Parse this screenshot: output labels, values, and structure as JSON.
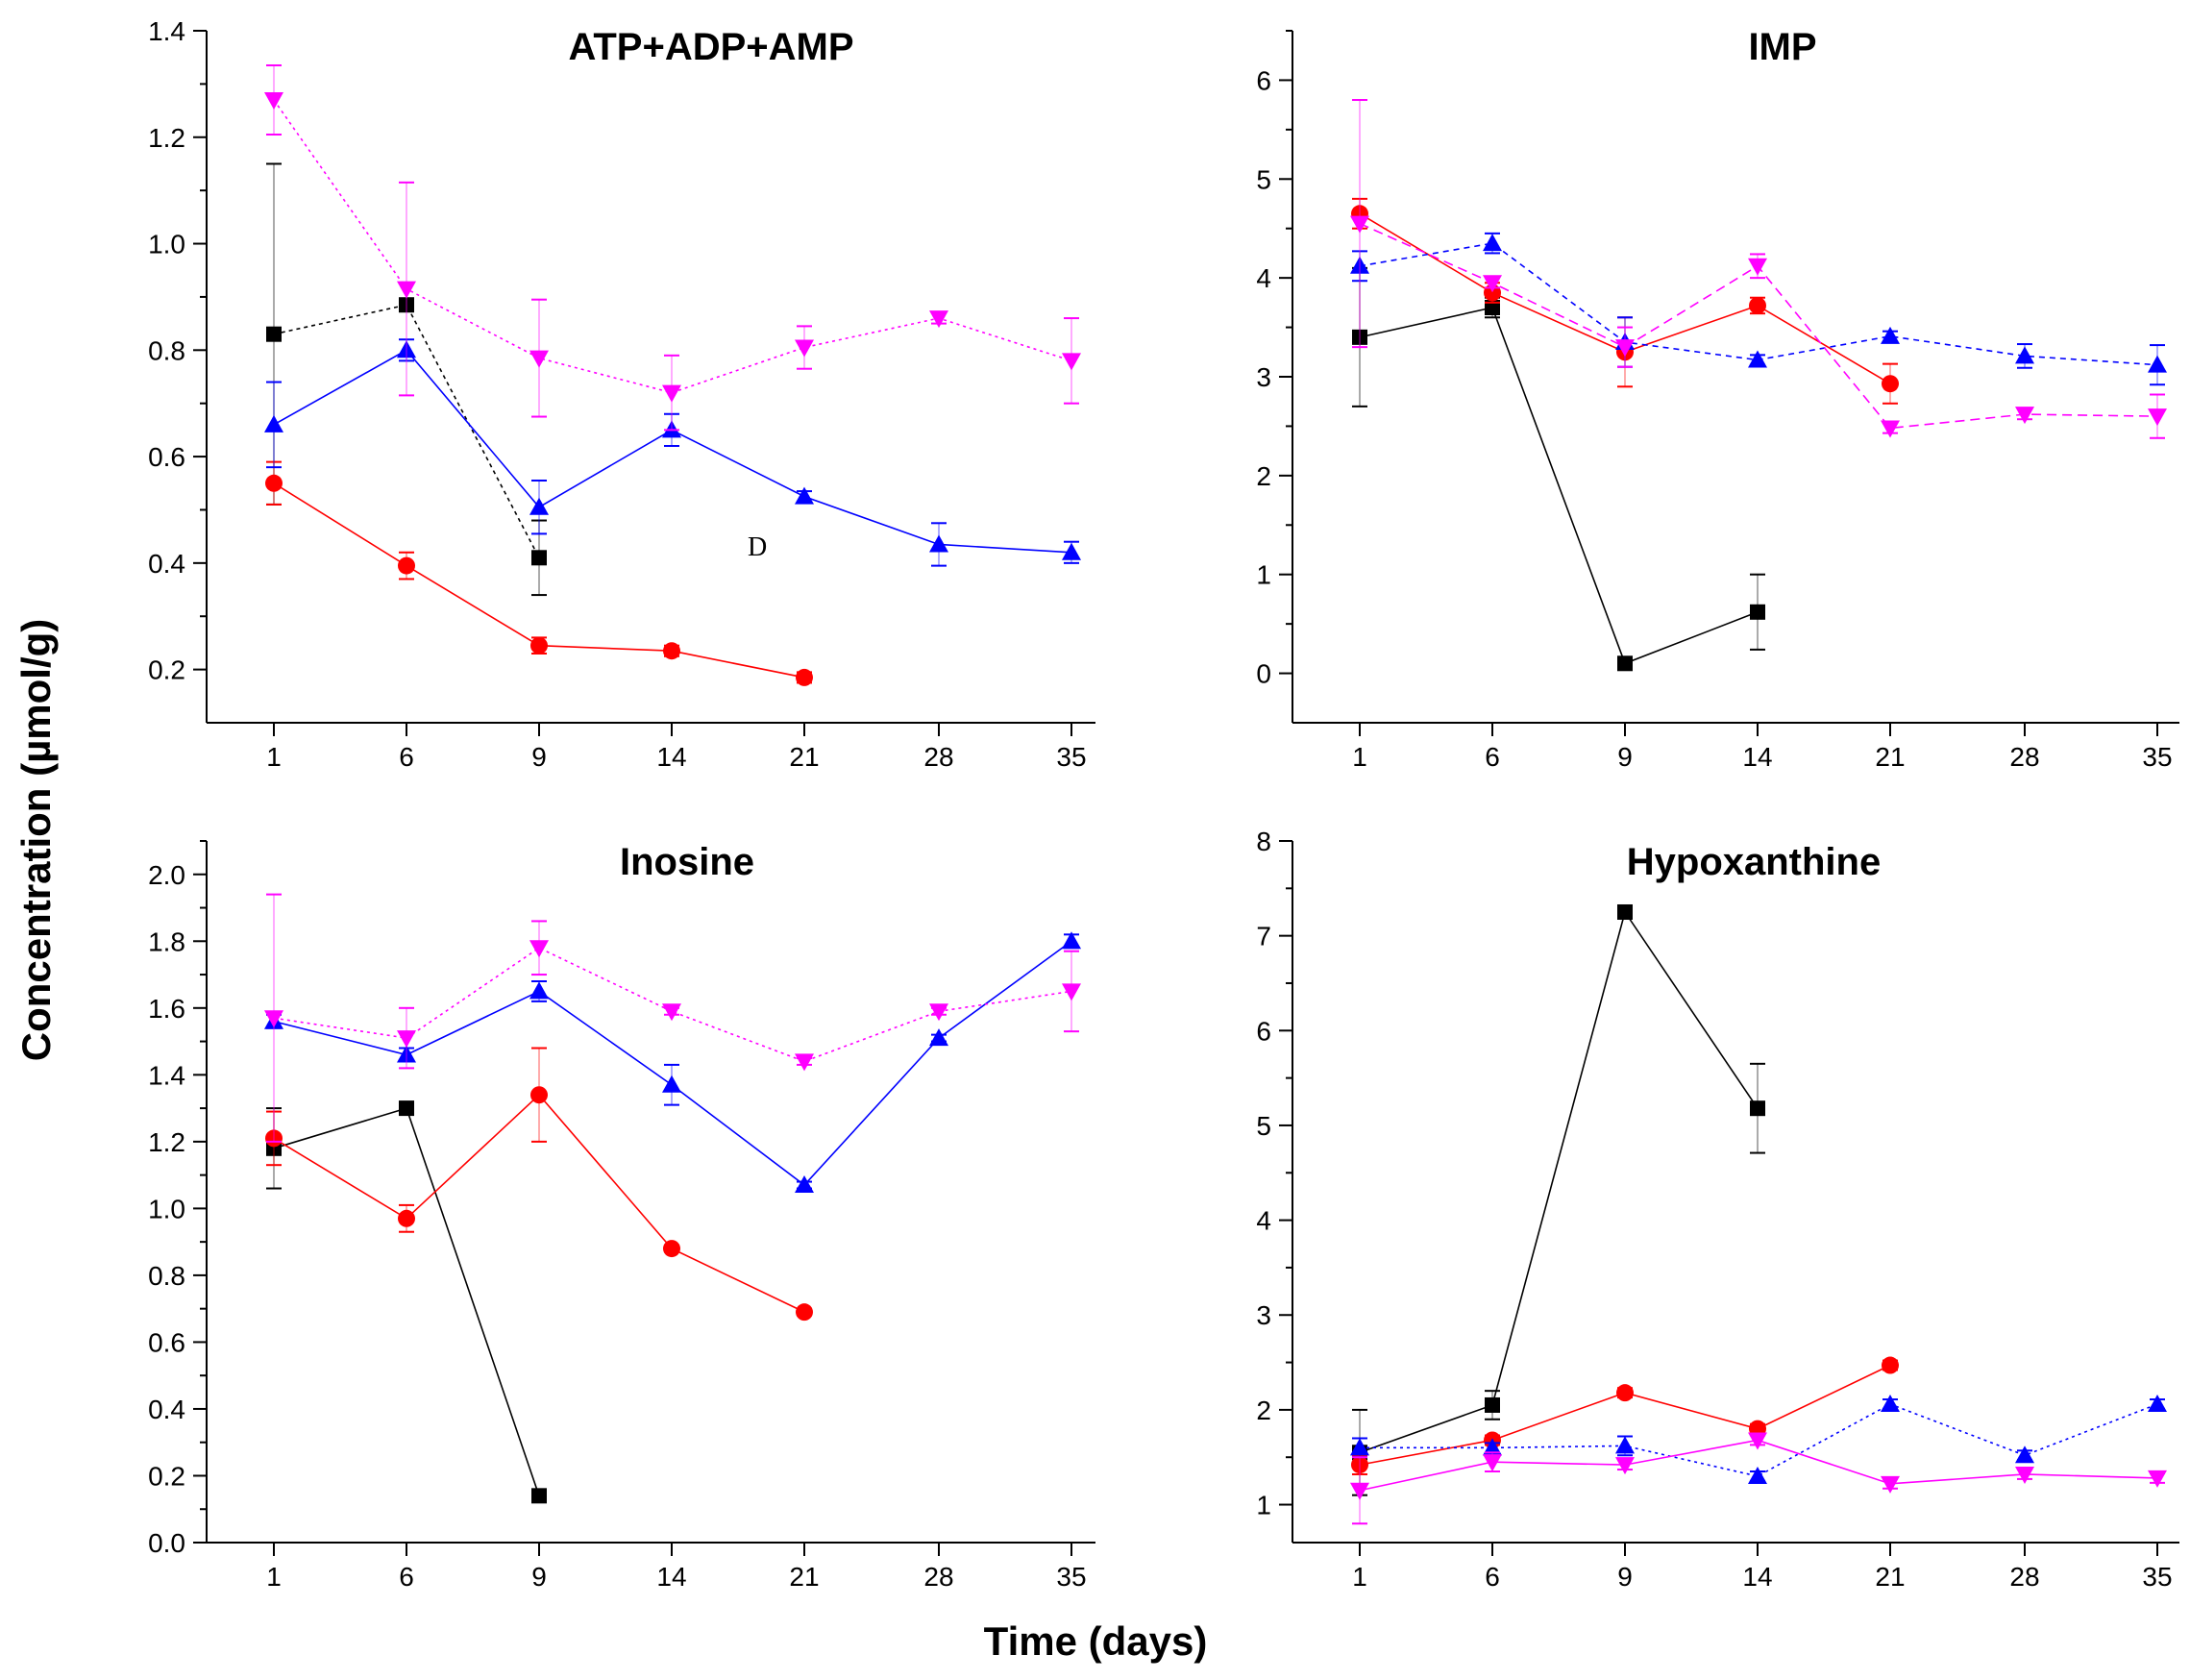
{
  "figure": {
    "xlabel": "Time (days)",
    "ylabel": "Concentration (µmol/g)",
    "stray_mark": "D"
  },
  "colors": {
    "black": "#000000",
    "red": "#ff0000",
    "blue": "#0000ff",
    "magenta": "#ff00ff",
    "error_gray": "#888888"
  },
  "chart_data": [
    {
      "type": "line",
      "title": "ATP+ADP+AMP",
      "categories": [
        "1",
        "6",
        "9",
        "14",
        "21",
        "28",
        "35"
      ],
      "ylim": [
        0.1,
        1.4
      ],
      "yticks": [
        "0.2",
        "0.4",
        "0.6",
        "0.8",
        "1.0",
        "1.2",
        "1.4"
      ],
      "series": [
        {
          "name": "black-square",
          "color": "#000000",
          "marker": "square",
          "dash": "4,4",
          "values": [
            0.83,
            0.885,
            0.41,
            null,
            null,
            null,
            null
          ],
          "errors": [
            0.32,
            0.0,
            0.07,
            null,
            null,
            null,
            null
          ]
        },
        {
          "name": "red-circle",
          "color": "#ff0000",
          "marker": "circle",
          "dash": "none",
          "values": [
            0.55,
            0.395,
            0.245,
            0.235,
            0.185,
            null,
            null
          ],
          "errors": [
            0.04,
            0.025,
            0.015,
            0.01,
            0.01,
            null,
            null
          ]
        },
        {
          "name": "blue-triangle-up",
          "color": "#0000ff",
          "marker": "triangle-up",
          "dash": "none",
          "values": [
            0.66,
            0.8,
            0.505,
            0.65,
            0.525,
            0.435,
            0.42
          ],
          "errors": [
            0.08,
            0.02,
            0.05,
            0.03,
            0.01,
            0.04,
            0.02
          ]
        },
        {
          "name": "magenta-triangle-down",
          "color": "#ff00ff",
          "marker": "triangle-down",
          "dash": "3,4",
          "values": [
            1.27,
            0.915,
            0.785,
            0.72,
            0.805,
            0.86,
            0.78
          ],
          "errors": [
            0.065,
            0.2,
            0.11,
            0.07,
            0.04,
            0.01,
            0.08
          ]
        }
      ]
    },
    {
      "type": "line",
      "title": "IMP",
      "categories": [
        "1",
        "6",
        "9",
        "14",
        "21",
        "28",
        "35"
      ],
      "ylim": [
        -0.5,
        6.5
      ],
      "yticks": [
        "0",
        "1",
        "2",
        "3",
        "4",
        "5",
        "6"
      ],
      "series": [
        {
          "name": "black-square",
          "color": "#000000",
          "marker": "square",
          "dash": "none",
          "values": [
            3.4,
            3.7,
            0.1,
            0.62,
            null,
            null,
            null
          ],
          "errors": [
            0.7,
            0.1,
            0.05,
            0.38,
            null,
            null,
            null
          ]
        },
        {
          "name": "red-circle",
          "color": "#ff0000",
          "marker": "circle",
          "dash": "none",
          "values": [
            4.65,
            3.85,
            3.25,
            3.72,
            2.93,
            null,
            null
          ],
          "errors": [
            0.15,
            0.1,
            0.35,
            0.08,
            0.2,
            null,
            null
          ]
        },
        {
          "name": "blue-triangle-up",
          "color": "#0000ff",
          "marker": "triangle-up",
          "dash": "6,5",
          "values": [
            4.12,
            4.35,
            3.35,
            3.17,
            3.41,
            3.21,
            3.12
          ],
          "errors": [
            0.15,
            0.1,
            0.25,
            0.05,
            0.05,
            0.12,
            0.2
          ]
        },
        {
          "name": "magenta-triangle-down",
          "color": "#ff00ff",
          "marker": "triangle-down",
          "dash": "10,6",
          "values": [
            4.55,
            3.95,
            3.3,
            4.12,
            2.48,
            2.62,
            2.6
          ],
          "errors": [
            1.25,
            0.05,
            0.2,
            0.12,
            0.05,
            0.05,
            0.22
          ]
        }
      ]
    },
    {
      "type": "line",
      "title": "Inosine",
      "categories": [
        "1",
        "6",
        "9",
        "14",
        "21",
        "28",
        "35"
      ],
      "ylim": [
        0.0,
        2.1
      ],
      "yticks": [
        "0.0",
        "0.2",
        "0.4",
        "0.6",
        "0.8",
        "1.0",
        "1.2",
        "1.4",
        "1.6",
        "1.8",
        "2.0"
      ],
      "series": [
        {
          "name": "black-square",
          "color": "#000000",
          "marker": "square",
          "dash": "none",
          "values": [
            1.18,
            1.3,
            0.14,
            null,
            null,
            null,
            null
          ],
          "errors": [
            0.12,
            0.0,
            0.0,
            null,
            null,
            null,
            null
          ]
        },
        {
          "name": "red-circle",
          "color": "#ff0000",
          "marker": "circle",
          "dash": "none",
          "values": [
            1.21,
            0.97,
            1.34,
            0.88,
            0.69,
            null,
            null
          ],
          "errors": [
            0.08,
            0.04,
            0.14,
            0.01,
            0.01,
            null,
            null
          ]
        },
        {
          "name": "blue-triangle-up",
          "color": "#0000ff",
          "marker": "triangle-up",
          "dash": "none",
          "values": [
            1.56,
            1.46,
            1.65,
            1.37,
            1.07,
            1.51,
            1.8
          ],
          "errors": [
            0.02,
            0.02,
            0.03,
            0.06,
            0.01,
            0.01,
            0.02
          ]
        },
        {
          "name": "magenta-triangle-down",
          "color": "#ff00ff",
          "marker": "triangle-down",
          "dash": "3,4",
          "values": [
            1.57,
            1.51,
            1.78,
            1.59,
            1.44,
            1.59,
            1.65
          ],
          "errors": [
            0.37,
            0.09,
            0.08,
            0.01,
            0.01,
            0.01,
            0.12
          ]
        }
      ]
    },
    {
      "type": "line",
      "title": "Hypoxanthine",
      "categories": [
        "1",
        "6",
        "9",
        "14",
        "21",
        "28",
        "35"
      ],
      "ylim": [
        0.6,
        8.0
      ],
      "yticks": [
        "1",
        "2",
        "3",
        "4",
        "5",
        "6",
        "7",
        "8"
      ],
      "series": [
        {
          "name": "black-square",
          "color": "#000000",
          "marker": "square",
          "dash": "none",
          "values": [
            1.55,
            2.05,
            7.25,
            5.18,
            null,
            null,
            null
          ],
          "errors": [
            0.45,
            0.15,
            0.05,
            0.47,
            null,
            null,
            null
          ]
        },
        {
          "name": "red-circle",
          "color": "#ff0000",
          "marker": "circle",
          "dash": "none",
          "values": [
            1.42,
            1.68,
            2.18,
            1.8,
            2.47,
            null,
            null
          ],
          "errors": [
            0.1,
            0.05,
            0.05,
            0.05,
            0.05,
            null,
            null
          ]
        },
        {
          "name": "blue-triangle-up",
          "color": "#0000ff",
          "marker": "triangle-up",
          "dash": "3,4",
          "values": [
            1.6,
            1.6,
            1.62,
            1.3,
            2.06,
            1.52,
            2.06
          ],
          "errors": [
            0.1,
            0.05,
            0.1,
            0.05,
            0.05,
            0.05,
            0.05
          ]
        },
        {
          "name": "magenta-triangle-down",
          "color": "#ff00ff",
          "marker": "triangle-down",
          "dash": "none",
          "values": [
            1.15,
            1.45,
            1.42,
            1.68,
            1.22,
            1.32,
            1.28
          ],
          "errors": [
            0.35,
            0.1,
            0.05,
            0.05,
            0.05,
            0.05,
            0.05
          ]
        }
      ]
    }
  ]
}
